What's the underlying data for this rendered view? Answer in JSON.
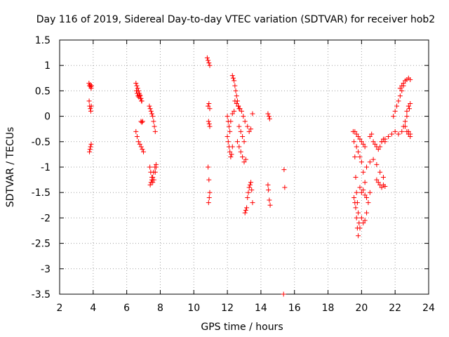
{
  "chart_data": {
    "type": "scatter",
    "title": "Day 116 of 2019, Sidereal Day-to-day VTEC variation (SDTVAR) for receiver hob2",
    "xlabel": "GPS time / hours",
    "ylabel": "SDTVAR / TECUs",
    "xlim": [
      2,
      24
    ],
    "ylim": [
      -3.5,
      1.5
    ],
    "xticks": [
      "2",
      "4",
      "6",
      "8",
      "10",
      "12",
      "14",
      "16",
      "18",
      "20",
      "22",
      "24"
    ],
    "yticks": [
      "1.5",
      "1",
      "0.5",
      "0",
      "-0.5",
      "-1",
      "-1.5",
      "-2",
      "-2.5",
      "-3",
      "-3.5"
    ],
    "grid": true,
    "marker": "+",
    "color": "#ff0000",
    "series": [
      {
        "name": "SDTVAR",
        "x": [
          3.75,
          3.78,
          3.82,
          3.85,
          3.88,
          3.9,
          3.76,
          3.79,
          3.83,
          3.86,
          3.89,
          3.78,
          3.81,
          3.84,
          3.88,
          6.55,
          6.6,
          6.65,
          6.7,
          6.75,
          6.8,
          6.85,
          6.9,
          6.58,
          6.62,
          6.67,
          6.72,
          6.78,
          6.82,
          6.88,
          6.55,
          6.62,
          6.7,
          6.78,
          6.86,
          6.93,
          7.0,
          6.85,
          6.9,
          6.95,
          7.35,
          7.4,
          7.45,
          7.5,
          7.55,
          7.6,
          7.65,
          7.7,
          7.38,
          7.43,
          7.5,
          7.55,
          7.62,
          7.7,
          7.75,
          7.4,
          7.45,
          7.5,
          7.55,
          7.6,
          7.68,
          7.75,
          10.8,
          10.85,
          10.9,
          10.95,
          10.85,
          10.9,
          10.95,
          10.88,
          10.92,
          10.95,
          10.85,
          10.9,
          10.95,
          10.92,
          10.88,
          12.0,
          12.05,
          12.1,
          12.15,
          12.2,
          12.25,
          12.3,
          12.0,
          12.05,
          12.1,
          12.15,
          12.2,
          12.3,
          12.4,
          12.3,
          12.35,
          12.4,
          12.45,
          12.5,
          12.55,
          12.6,
          12.65,
          12.7,
          12.45,
          12.55,
          12.65,
          12.75,
          12.85,
          12.95,
          13.05,
          12.6,
          12.7,
          12.8,
          12.9,
          13.0,
          13.1,
          12.7,
          12.8,
          12.9,
          13.0,
          13.05,
          13.1,
          13.15,
          13.2,
          13.25,
          13.3,
          13.35,
          13.4,
          13.45,
          13.5,
          13.2,
          13.3,
          13.4,
          13.5,
          14.42,
          14.45,
          14.5,
          14.55,
          14.42,
          14.48,
          14.52,
          15.38,
          15.42,
          15.35,
          19.5,
          19.55,
          19.6,
          19.65,
          19.7,
          19.75,
          19.8,
          19.85,
          19.9,
          19.55,
          19.6,
          19.65,
          19.7,
          19.75,
          19.8,
          19.6,
          19.7,
          19.8,
          19.9,
          20.0,
          20.1,
          20.2,
          19.7,
          19.8,
          19.9,
          20.0,
          20.1,
          20.2,
          19.9,
          20.0,
          20.1,
          20.2,
          20.3,
          20.0,
          20.1,
          20.2,
          20.3,
          20.4,
          20.5,
          20.5,
          20.6,
          20.7,
          20.8,
          20.9,
          21.0,
          21.1,
          21.2,
          21.3,
          21.4,
          20.3,
          20.5,
          20.7,
          20.9,
          21.1,
          21.3,
          20.9,
          21.0,
          21.1,
          21.2,
          21.3,
          21.4,
          21.2,
          21.4,
          21.6,
          21.8,
          22.0,
          22.2,
          22.4,
          21.9,
          22.0,
          22.1,
          22.2,
          22.3,
          22.4,
          22.5,
          22.3,
          22.4,
          22.5,
          22.6,
          22.7,
          22.8,
          22.9,
          22.6,
          22.7,
          22.8,
          22.9,
          22.7,
          22.8,
          22.9,
          22.85,
          22.5,
          22.6,
          22.7,
          22.8,
          22.9
        ],
        "y": [
          0.65,
          0.6,
          0.62,
          0.58,
          0.55,
          0.6,
          0.3,
          0.2,
          0.15,
          0.1,
          0.2,
          -0.7,
          -0.65,
          -0.6,
          -0.55,
          0.65,
          0.6,
          0.55,
          0.5,
          0.45,
          0.4,
          0.35,
          0.3,
          0.5,
          0.45,
          0.4,
          0.38,
          0.42,
          0.35,
          0.3,
          -0.3,
          -0.4,
          -0.5,
          -0.55,
          -0.6,
          -0.65,
          -0.7,
          -0.1,
          -0.12,
          -0.1,
          0.2,
          0.15,
          0.1,
          0.05,
          0.0,
          -0.1,
          -0.2,
          -0.3,
          -1.0,
          -1.1,
          -1.2,
          -1.3,
          -1.25,
          -1.1,
          -1.0,
          -1.35,
          -1.3,
          -1.25,
          -1.2,
          -1.1,
          -1.0,
          -0.95,
          1.15,
          1.1,
          1.05,
          1.0,
          0.2,
          0.25,
          0.15,
          -0.1,
          -0.15,
          -0.2,
          -1.0,
          -1.25,
          -1.5,
          -1.6,
          -1.7,
          -0.4,
          -0.5,
          -0.6,
          -0.7,
          -0.8,
          -0.75,
          -0.6,
          0.0,
          -0.1,
          -0.2,
          -0.3,
          -0.1,
          0.05,
          0.1,
          0.8,
          0.75,
          0.7,
          0.6,
          0.5,
          0.4,
          0.3,
          0.2,
          0.15,
          0.3,
          0.25,
          0.2,
          0.15,
          0.1,
          0.0,
          -0.1,
          -0.5,
          -0.6,
          -0.7,
          -0.8,
          -0.9,
          -0.85,
          -0.2,
          -0.3,
          -0.4,
          -0.5,
          -1.9,
          -1.85,
          -1.8,
          -1.6,
          -1.5,
          -1.4,
          -1.35,
          -1.3,
          -1.45,
          -1.7,
          -0.2,
          -0.3,
          -0.25,
          0.05,
          -1.35,
          -1.45,
          -1.65,
          -1.75,
          0.05,
          0.0,
          -0.05,
          -1.05,
          -1.4,
          -3.5,
          -0.3,
          -0.5,
          -0.8,
          -1.2,
          -1.5,
          -1.7,
          -1.9,
          -2.1,
          -2.2,
          -1.6,
          -1.7,
          -1.8,
          -2.0,
          -2.2,
          -2.35,
          -0.3,
          -0.35,
          -0.4,
          -0.45,
          -0.5,
          -0.55,
          -0.6,
          -0.6,
          -0.7,
          -0.8,
          -0.9,
          -1.1,
          -1.3,
          -1.4,
          -1.5,
          -1.45,
          -1.55,
          -1.6,
          -2.0,
          -2.1,
          -2.05,
          -1.9,
          -1.7,
          -1.5,
          -0.4,
          -0.35,
          -0.5,
          -0.55,
          -0.6,
          -0.65,
          -0.6,
          -0.5,
          -0.45,
          -0.5,
          -1.0,
          -0.9,
          -0.85,
          -0.95,
          -1.1,
          -1.2,
          -1.25,
          -1.3,
          -1.35,
          -1.4,
          -1.35,
          -1.38,
          -0.5,
          -0.45,
          -0.4,
          -0.35,
          -0.3,
          -0.35,
          -0.3,
          0.0,
          0.1,
          0.2,
          0.3,
          0.4,
          0.5,
          0.6,
          0.55,
          0.6,
          0.65,
          0.7,
          0.72,
          0.75,
          0.72,
          -0.2,
          -0.3,
          -0.35,
          -0.4,
          0.1,
          0.2,
          0.25,
          0.15,
          -0.2,
          -0.1,
          0.0,
          -0.3,
          -0.35
        ]
      }
    ]
  }
}
